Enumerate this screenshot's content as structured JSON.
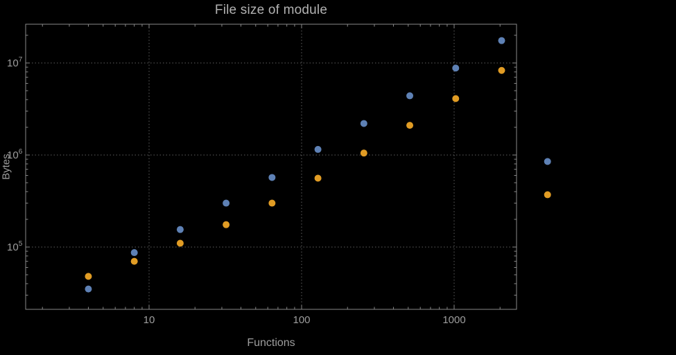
{
  "chart_data": {
    "type": "scatter",
    "title": "File size of module",
    "xlabel": "Functions",
    "ylabel": "Bytes",
    "x_scale": "log",
    "y_scale": "log",
    "grid": "dotted",
    "legend": "none",
    "xlim": [
      1.55,
      2600
    ],
    "ylim": [
      21000,
      27000000
    ],
    "x_ticks": [
      {
        "value": 10,
        "label": "10"
      },
      {
        "value": 100,
        "label": "100"
      },
      {
        "value": 1000,
        "label": "1000"
      }
    ],
    "y_ticks": [
      {
        "value": 100000,
        "base": "10",
        "exponent": "5"
      },
      {
        "value": 1000000,
        "base": "10",
        "exponent": "6"
      },
      {
        "value": 10000000,
        "base": "10",
        "exponent": "7"
      }
    ],
    "series": [
      {
        "name": "blue",
        "color": "#5E81B5",
        "x": [
          4,
          8,
          16,
          32,
          64,
          128,
          256,
          512,
          1024,
          2048,
          4096
        ],
        "y": [
          35000,
          87000,
          155000,
          300000,
          570000,
          1150000,
          2200000,
          4400000,
          8800000,
          17500000,
          850000
        ]
      },
      {
        "name": "orange",
        "color": "#E19C24",
        "x": [
          4,
          8,
          16,
          32,
          64,
          128,
          256,
          512,
          1024,
          2048,
          4096
        ],
        "y": [
          48000,
          70000,
          110000,
          175000,
          300000,
          560000,
          1050000,
          2100000,
          4100000,
          8300000,
          370000
        ]
      }
    ]
  },
  "style": {
    "background": "#000000",
    "frame_color": "#8a8a8a",
    "grid_color": "#5f5f5f",
    "text_color": "#9e9e9e",
    "title_color": "#b2b2b2"
  }
}
